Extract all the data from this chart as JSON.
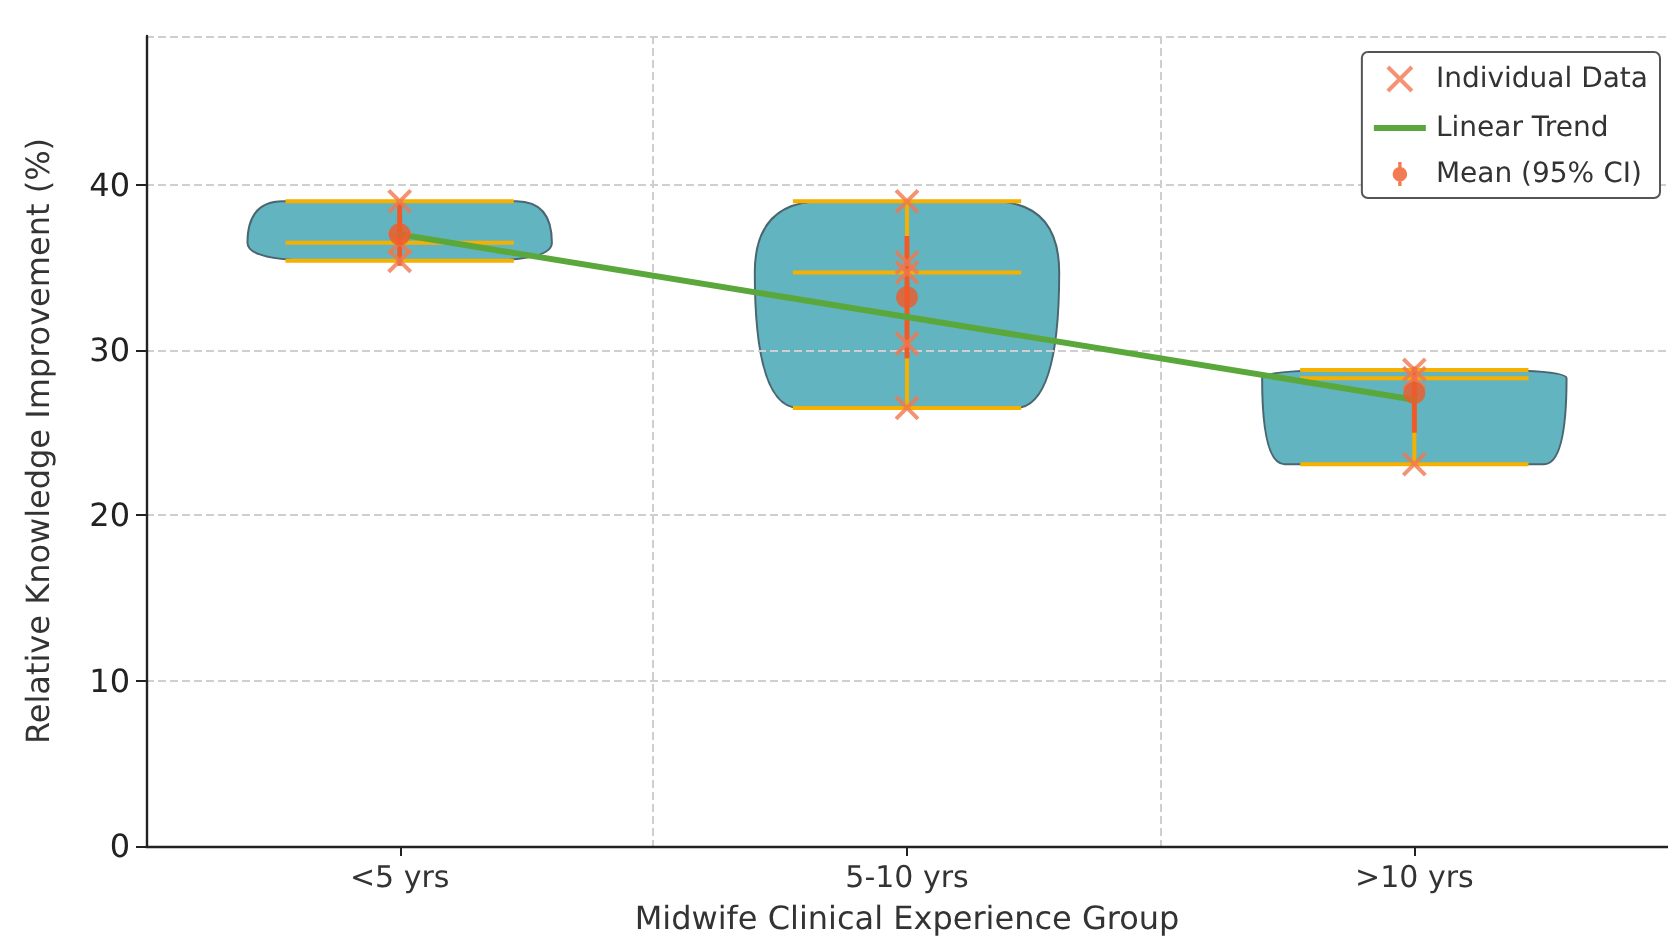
{
  "chart_data": {
    "type": "scatter",
    "xlabel": "Midwife Clinical Experience Group",
    "ylabel": "Relative Knowledge Improvement (%)",
    "categories": [
      "<5 yrs",
      "5-10 yrs",
      ">10 yrs"
    ],
    "ylim": [
      0,
      49
    ],
    "yticks": [
      0,
      10,
      20,
      30,
      40
    ],
    "grid": true,
    "legend": "top right",
    "series": [
      {
        "type": "box",
        "color": "#f5b000",
        "boxes": [
          {
            "low": 35.4,
            "q1": 36.5,
            "median": 36.5,
            "q3": 36.5,
            "high": 39.0
          },
          {
            "low": 26.5,
            "q1": 34.7,
            "median": 34.7,
            "q3": 34.7,
            "high": 39.0
          },
          {
            "low": 23.1,
            "q1": 28.3,
            "median": 28.3,
            "q3": 28.3,
            "high": 28.8
          }
        ]
      },
      {
        "name": "Individual Data",
        "marker": "cross",
        "color": "#f07850",
        "x": [
          "<5 yrs",
          "<5 yrs",
          "<5 yrs",
          "5-10 yrs",
          "5-10 yrs",
          "5-10 yrs",
          "5-10 yrs",
          "5-10 yrs",
          ">10 yrs",
          ">10 yrs",
          ">10 yrs"
        ],
        "values": [
          39.0,
          35.4,
          36.5,
          30.4,
          26.5,
          39.0,
          35.3,
          34.7,
          28.3,
          28.8,
          23.1
        ]
      },
      {
        "name": "Linear Trend",
        "type": "line",
        "marker": "none",
        "color": "#5aa83c",
        "values": [
          37.0,
          32.0,
          27.0
        ]
      },
      {
        "name": "Mean (95% CI)",
        "marker": "circle",
        "color": "#f05a28",
        "values": [
          37.0,
          33.2,
          27.4
        ],
        "errors": [
          [
            35.1,
            38.9
          ],
          [
            29.5,
            36.9
          ],
          [
            25.0,
            29.0
          ]
        ]
      }
    ]
  }
}
